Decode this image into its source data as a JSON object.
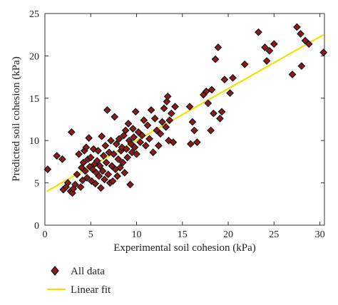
{
  "chart_data": {
    "type": "scatter",
    "xlabel": "Experimental soil cohesion (kPa)",
    "ylabel": "Predicted soil cohesion (kPa)",
    "xlim": [
      0,
      30.5
    ],
    "ylim": [
      0,
      25
    ],
    "xticks": [
      0,
      5,
      10,
      15,
      20,
      25,
      30
    ],
    "yticks": [
      0,
      5,
      10,
      15,
      20,
      25
    ],
    "grid": false,
    "legend_position": "bottom",
    "series": [
      {
        "name": "All data",
        "kind": "scatter",
        "marker": "diamond",
        "color": "#8b1a1a",
        "edge_color": "#111111",
        "points": [
          [
            0.3,
            6.6
          ],
          [
            1.3,
            8.2
          ],
          [
            1.9,
            7.8
          ],
          [
            2.0,
            4.2
          ],
          [
            2.3,
            4.5
          ],
          [
            2.5,
            5.0
          ],
          [
            2.8,
            4.0
          ],
          [
            2.9,
            11.0
          ],
          [
            3.0,
            3.8
          ],
          [
            3.1,
            4.3
          ],
          [
            3.3,
            4.8
          ],
          [
            3.5,
            6.0
          ],
          [
            3.7,
            8.4
          ],
          [
            3.9,
            4.5
          ],
          [
            4.0,
            6.8
          ],
          [
            4.1,
            5.3
          ],
          [
            4.2,
            7.4
          ],
          [
            4.3,
            8.8
          ],
          [
            4.4,
            6.4
          ],
          [
            4.5,
            9.2
          ],
          [
            4.6,
            5.6
          ],
          [
            4.7,
            7.8
          ],
          [
            4.8,
            10.3
          ],
          [
            4.9,
            6.9
          ],
          [
            5.0,
            8.0
          ],
          [
            5.1,
            5.2
          ],
          [
            5.2,
            6.6
          ],
          [
            5.3,
            9.0
          ],
          [
            5.4,
            7.2
          ],
          [
            5.5,
            4.9
          ],
          [
            5.6,
            6.2
          ],
          [
            5.7,
            7.6
          ],
          [
            5.8,
            8.8
          ],
          [
            5.9,
            5.8
          ],
          [
            6.0,
            7.0
          ],
          [
            6.1,
            4.4
          ],
          [
            6.2,
            10.5
          ],
          [
            6.3,
            6.4
          ],
          [
            6.4,
            8.2
          ],
          [
            6.5,
            5.4
          ],
          [
            6.6,
            9.4
          ],
          [
            6.7,
            7.4
          ],
          [
            6.8,
            13.6
          ],
          [
            6.9,
            6.0
          ],
          [
            7.0,
            8.6
          ],
          [
            7.1,
            5.0
          ],
          [
            7.2,
            10.0
          ],
          [
            7.3,
            7.0
          ],
          [
            7.4,
            5.2
          ],
          [
            7.5,
            8.4
          ],
          [
            7.6,
            12.8
          ],
          [
            7.7,
            6.6
          ],
          [
            7.8,
            9.6
          ],
          [
            7.9,
            5.8
          ],
          [
            8.0,
            7.8
          ],
          [
            8.1,
            10.2
          ],
          [
            8.2,
            6.8
          ],
          [
            8.3,
            8.8
          ],
          [
            8.4,
            9.2
          ],
          [
            8.5,
            7.4
          ],
          [
            8.6,
            10.6
          ],
          [
            8.7,
            6.2
          ],
          [
            8.8,
            11.2
          ],
          [
            8.9,
            9.0
          ],
          [
            9.0,
            8.0
          ],
          [
            9.1,
            12.0
          ],
          [
            9.2,
            10.0
          ],
          [
            9.3,
            4.8
          ],
          [
            9.4,
            9.6
          ],
          [
            9.5,
            8.6
          ],
          [
            9.6,
            11.4
          ],
          [
            9.7,
            10.4
          ],
          [
            9.8,
            9.2
          ],
          [
            9.9,
            13.4
          ],
          [
            10.0,
            8.4
          ],
          [
            10.2,
            11.0
          ],
          [
            10.4,
            9.8
          ],
          [
            10.6,
            10.6
          ],
          [
            10.8,
            12.4
          ],
          [
            11.0,
            9.4
          ],
          [
            11.2,
            11.8
          ],
          [
            11.4,
            10.2
          ],
          [
            11.6,
            13.6
          ],
          [
            11.8,
            8.6
          ],
          [
            12.0,
            12.6
          ],
          [
            12.2,
            11.2
          ],
          [
            12.4,
            9.4
          ],
          [
            12.6,
            10.8
          ],
          [
            12.8,
            12.2
          ],
          [
            13.0,
            13.8
          ],
          [
            13.2,
            11.6
          ],
          [
            13.3,
            14.6
          ],
          [
            13.4,
            15.2
          ],
          [
            13.5,
            10.0
          ],
          [
            13.6,
            12.4
          ],
          [
            13.8,
            13.2
          ],
          [
            14.0,
            9.8
          ],
          [
            14.2,
            14.0
          ],
          [
            15.8,
            14.0
          ],
          [
            15.9,
            9.6
          ],
          [
            16.1,
            12.2
          ],
          [
            16.3,
            11.2
          ],
          [
            16.6,
            9.8
          ],
          [
            17.3,
            15.4
          ],
          [
            17.6,
            15.8
          ],
          [
            17.8,
            14.4
          ],
          [
            18.1,
            11.2
          ],
          [
            18.2,
            16.0
          ],
          [
            18.4,
            13.2
          ],
          [
            18.6,
            19.6
          ],
          [
            18.9,
            21.0
          ],
          [
            19.1,
            12.6
          ],
          [
            19.3,
            13.4
          ],
          [
            19.6,
            17.2
          ],
          [
            20.2,
            15.6
          ],
          [
            20.5,
            17.4
          ],
          [
            21.8,
            19.0
          ],
          [
            23.3,
            22.8
          ],
          [
            24.0,
            21.0
          ],
          [
            24.2,
            19.4
          ],
          [
            24.5,
            20.6
          ],
          [
            25.0,
            21.4
          ],
          [
            27.0,
            17.8
          ],
          [
            27.5,
            23.4
          ],
          [
            27.9,
            22.6
          ],
          [
            28.0,
            18.8
          ],
          [
            28.4,
            21.8
          ],
          [
            28.8,
            21.4
          ],
          [
            30.4,
            20.4
          ]
        ]
      },
      {
        "name": "Linear fit",
        "kind": "line",
        "color": "#f2e200",
        "x": [
          0.2,
          30.4
        ],
        "y": [
          4.0,
          22.5
        ]
      }
    ]
  }
}
